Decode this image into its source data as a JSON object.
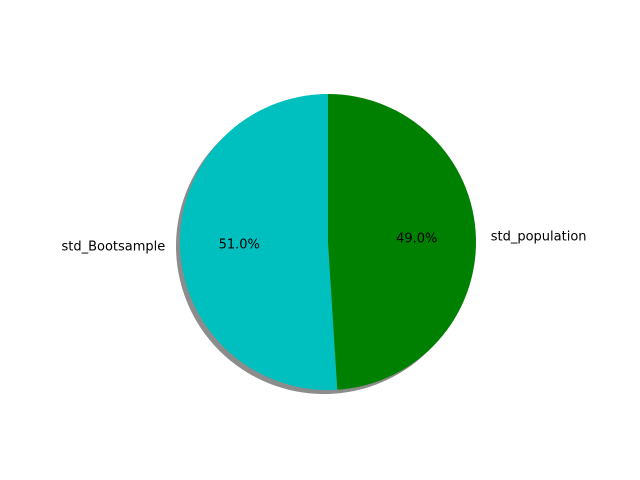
{
  "chart_data": {
    "type": "pie",
    "title": "",
    "shadow": true,
    "start_angle_deg": 90,
    "counterclock": true,
    "slices": [
      {
        "label": "std_Bootsample",
        "value": 51.0,
        "pct_label": "51.0%",
        "color": "#00bfbf"
      },
      {
        "label": "std_population",
        "value": 49.0,
        "pct_label": "49.0%",
        "color": "#008000"
      }
    ]
  }
}
